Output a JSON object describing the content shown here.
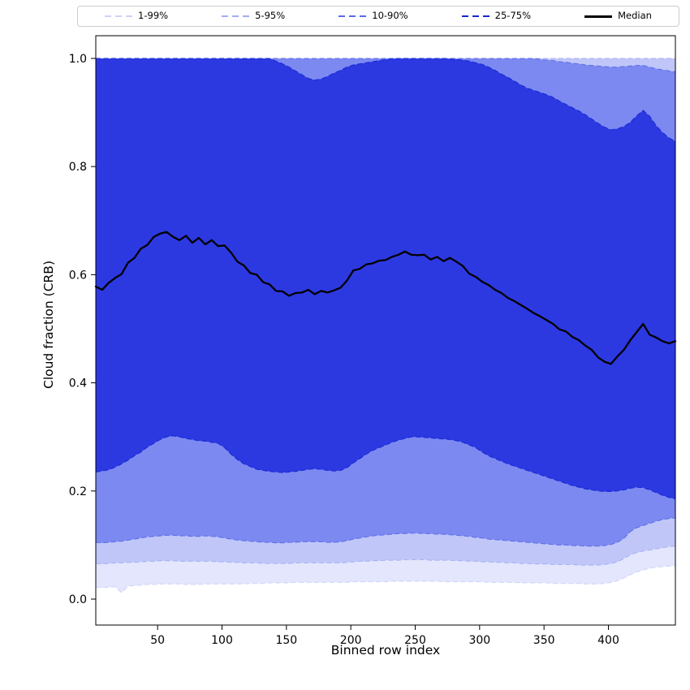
{
  "chart_data": {
    "type": "area",
    "title": "",
    "xlabel": "Binned row index",
    "ylabel": "Cloud fraction (CRB)",
    "xlim": [
      2,
      452
    ],
    "ylim": [
      -0.048,
      1.042
    ],
    "x_ticks": [
      50,
      100,
      150,
      200,
      250,
      300,
      350,
      400
    ],
    "y_ticks": [
      "0.0",
      "0.2",
      "0.4",
      "0.6",
      "0.8",
      "1.0"
    ],
    "grid": false,
    "legend_position": "top",
    "x": [
      2,
      7,
      12,
      17,
      22,
      27,
      32,
      37,
      42,
      47,
      52,
      57,
      62,
      67,
      72,
      77,
      82,
      87,
      92,
      97,
      102,
      107,
      112,
      117,
      122,
      127,
      132,
      137,
      142,
      147,
      152,
      157,
      162,
      167,
      172,
      177,
      182,
      187,
      192,
      197,
      202,
      207,
      212,
      217,
      222,
      227,
      232,
      237,
      242,
      247,
      252,
      257,
      262,
      267,
      272,
      277,
      282,
      287,
      292,
      297,
      302,
      307,
      312,
      317,
      322,
      327,
      332,
      337,
      342,
      347,
      352,
      357,
      362,
      367,
      372,
      377,
      382,
      387,
      392,
      397,
      402,
      407,
      412,
      417,
      422,
      427,
      432,
      437,
      442,
      447,
      452
    ],
    "series": [
      {
        "name": "p1",
        "values": [
          0.022,
          0.021,
          0.022,
          0.023,
          0.012,
          0.024,
          0.025,
          0.026,
          0.027,
          0.027,
          0.028,
          0.028,
          0.028,
          0.028,
          0.027,
          0.027,
          0.027,
          0.028,
          0.028,
          0.028,
          0.028,
          0.028,
          0.028,
          0.028,
          0.029,
          0.029,
          0.029,
          0.03,
          0.03,
          0.03,
          0.03,
          0.031,
          0.031,
          0.031,
          0.031,
          0.031,
          0.031,
          0.031,
          0.031,
          0.031,
          0.032,
          0.032,
          0.032,
          0.032,
          0.032,
          0.032,
          0.033,
          0.033,
          0.033,
          0.033,
          0.033,
          0.033,
          0.033,
          0.033,
          0.032,
          0.032,
          0.032,
          0.032,
          0.032,
          0.032,
          0.032,
          0.031,
          0.031,
          0.031,
          0.031,
          0.031,
          0.03,
          0.03,
          0.03,
          0.03,
          0.03,
          0.029,
          0.029,
          0.029,
          0.029,
          0.029,
          0.028,
          0.028,
          0.028,
          0.029,
          0.031,
          0.034,
          0.039,
          0.045,
          0.05,
          0.054,
          0.057,
          0.059,
          0.06,
          0.061,
          0.062
        ]
      },
      {
        "name": "p5",
        "values": [
          0.066,
          0.065,
          0.066,
          0.067,
          0.067,
          0.068,
          0.068,
          0.069,
          0.07,
          0.07,
          0.071,
          0.071,
          0.071,
          0.07,
          0.07,
          0.07,
          0.07,
          0.07,
          0.07,
          0.069,
          0.069,
          0.068,
          0.068,
          0.067,
          0.067,
          0.067,
          0.066,
          0.066,
          0.066,
          0.066,
          0.066,
          0.067,
          0.067,
          0.067,
          0.067,
          0.067,
          0.067,
          0.067,
          0.067,
          0.068,
          0.069,
          0.07,
          0.07,
          0.071,
          0.071,
          0.072,
          0.072,
          0.072,
          0.073,
          0.073,
          0.073,
          0.073,
          0.072,
          0.072,
          0.072,
          0.072,
          0.071,
          0.071,
          0.07,
          0.07,
          0.069,
          0.069,
          0.068,
          0.068,
          0.067,
          0.067,
          0.066,
          0.066,
          0.065,
          0.065,
          0.065,
          0.064,
          0.064,
          0.064,
          0.064,
          0.063,
          0.063,
          0.063,
          0.063,
          0.064,
          0.066,
          0.069,
          0.075,
          0.082,
          0.086,
          0.089,
          0.091,
          0.093,
          0.095,
          0.097,
          0.098
        ]
      },
      {
        "name": "p10",
        "values": [
          0.105,
          0.104,
          0.105,
          0.106,
          0.107,
          0.109,
          0.111,
          0.113,
          0.115,
          0.116,
          0.117,
          0.118,
          0.118,
          0.117,
          0.117,
          0.116,
          0.116,
          0.117,
          0.116,
          0.115,
          0.113,
          0.111,
          0.109,
          0.108,
          0.107,
          0.106,
          0.105,
          0.105,
          0.104,
          0.104,
          0.105,
          0.105,
          0.106,
          0.106,
          0.106,
          0.106,
          0.105,
          0.105,
          0.106,
          0.108,
          0.111,
          0.113,
          0.115,
          0.117,
          0.118,
          0.119,
          0.12,
          0.121,
          0.121,
          0.122,
          0.122,
          0.121,
          0.121,
          0.12,
          0.12,
          0.119,
          0.118,
          0.117,
          0.116,
          0.114,
          0.113,
          0.111,
          0.11,
          0.109,
          0.108,
          0.107,
          0.106,
          0.105,
          0.104,
          0.103,
          0.102,
          0.101,
          0.1,
          0.1,
          0.099,
          0.099,
          0.098,
          0.098,
          0.098,
          0.099,
          0.101,
          0.105,
          0.112,
          0.125,
          0.132,
          0.136,
          0.14,
          0.144,
          0.147,
          0.149,
          0.15
        ]
      },
      {
        "name": "p25",
        "values": [
          0.235,
          0.237,
          0.239,
          0.244,
          0.25,
          0.257,
          0.265,
          0.272,
          0.281,
          0.288,
          0.295,
          0.3,
          0.302,
          0.3,
          0.297,
          0.295,
          0.293,
          0.292,
          0.29,
          0.288,
          0.28,
          0.268,
          0.258,
          0.25,
          0.245,
          0.24,
          0.238,
          0.236,
          0.235,
          0.234,
          0.235,
          0.236,
          0.238,
          0.24,
          0.241,
          0.24,
          0.238,
          0.237,
          0.238,
          0.243,
          0.252,
          0.26,
          0.268,
          0.275,
          0.28,
          0.285,
          0.29,
          0.294,
          0.297,
          0.3,
          0.3,
          0.299,
          0.298,
          0.297,
          0.296,
          0.295,
          0.293,
          0.29,
          0.285,
          0.28,
          0.272,
          0.265,
          0.26,
          0.255,
          0.25,
          0.246,
          0.242,
          0.238,
          0.234,
          0.23,
          0.226,
          0.222,
          0.218,
          0.214,
          0.21,
          0.207,
          0.204,
          0.202,
          0.2,
          0.199,
          0.199,
          0.2,
          0.202,
          0.205,
          0.207,
          0.206,
          0.202,
          0.197,
          0.192,
          0.188,
          0.185
        ]
      },
      {
        "name": "median",
        "values": [
          0.578,
          0.572,
          0.585,
          0.594,
          0.601,
          0.622,
          0.631,
          0.648,
          0.655,
          0.67,
          0.676,
          0.679,
          0.67,
          0.664,
          0.672,
          0.659,
          0.668,
          0.656,
          0.664,
          0.653,
          0.654,
          0.641,
          0.624,
          0.617,
          0.603,
          0.6,
          0.586,
          0.582,
          0.57,
          0.569,
          0.561,
          0.566,
          0.567,
          0.572,
          0.564,
          0.57,
          0.567,
          0.571,
          0.576,
          0.589,
          0.608,
          0.611,
          0.619,
          0.621,
          0.626,
          0.627,
          0.633,
          0.637,
          0.643,
          0.637,
          0.636,
          0.637,
          0.628,
          0.633,
          0.625,
          0.631,
          0.624,
          0.616,
          0.602,
          0.596,
          0.587,
          0.581,
          0.572,
          0.566,
          0.557,
          0.551,
          0.544,
          0.537,
          0.529,
          0.523,
          0.516,
          0.509,
          0.499,
          0.495,
          0.485,
          0.479,
          0.469,
          0.461,
          0.447,
          0.439,
          0.435,
          0.449,
          0.461,
          0.479,
          0.494,
          0.509,
          0.489,
          0.484,
          0.477,
          0.473,
          0.477
        ]
      },
      {
        "name": "p75",
        "values": [
          1.0,
          1.0,
          1.0,
          1.0,
          1.0,
          1.0,
          1.0,
          1.0,
          1.0,
          1.0,
          1.0,
          1.0,
          1.0,
          1.0,
          1.0,
          1.0,
          1.0,
          1.0,
          1.0,
          1.0,
          1.0,
          1.0,
          1.0,
          1.0,
          1.0,
          1.0,
          1.0,
          1.0,
          0.995,
          0.99,
          0.984,
          0.977,
          0.97,
          0.963,
          0.96,
          0.962,
          0.967,
          0.973,
          0.978,
          0.984,
          0.988,
          0.99,
          0.992,
          0.994,
          0.996,
          0.998,
          0.999,
          1.0,
          1.0,
          1.0,
          1.0,
          1.0,
          1.0,
          1.0,
          1.0,
          0.999,
          0.998,
          0.997,
          0.995,
          0.992,
          0.989,
          0.984,
          0.978,
          0.971,
          0.965,
          0.958,
          0.951,
          0.945,
          0.941,
          0.937,
          0.933,
          0.928,
          0.921,
          0.915,
          0.909,
          0.903,
          0.896,
          0.888,
          0.88,
          0.873,
          0.868,
          0.87,
          0.874,
          0.882,
          0.894,
          0.904,
          0.893,
          0.876,
          0.863,
          0.853,
          0.847
        ]
      },
      {
        "name": "p90",
        "values": [
          1.0,
          1.0,
          1.0,
          1.0,
          1.0,
          1.0,
          1.0,
          1.0,
          1.0,
          1.0,
          1.0,
          1.0,
          1.0,
          1.0,
          1.0,
          1.0,
          1.0,
          1.0,
          1.0,
          1.0,
          1.0,
          1.0,
          1.0,
          1.0,
          1.0,
          1.0,
          1.0,
          1.0,
          1.0,
          1.0,
          1.0,
          1.0,
          1.0,
          1.0,
          1.0,
          1.0,
          1.0,
          1.0,
          1.0,
          1.0,
          1.0,
          1.0,
          1.0,
          1.0,
          1.0,
          1.0,
          1.0,
          1.0,
          1.0,
          1.0,
          1.0,
          1.0,
          1.0,
          1.0,
          1.0,
          1.0,
          1.0,
          1.0,
          1.0,
          1.0,
          1.0,
          1.0,
          1.0,
          1.0,
          1.0,
          1.0,
          1.0,
          1.0,
          1.0,
          0.998,
          0.997,
          0.996,
          0.994,
          0.993,
          0.991,
          0.99,
          0.988,
          0.987,
          0.986,
          0.985,
          0.984,
          0.984,
          0.985,
          0.986,
          0.987,
          0.987,
          0.984,
          0.981,
          0.979,
          0.977,
          0.975
        ]
      },
      {
        "name": "p95",
        "values": 1.0
      },
      {
        "name": "p99",
        "values": 1.0
      }
    ],
    "bands": [
      {
        "label": "1-99%",
        "lower": "p1",
        "upper": "p99",
        "fill": "#e3e6fc",
        "edge": "#ccd3f9"
      },
      {
        "label": "5-95%",
        "lower": "p5",
        "upper": "p95",
        "fill": "#c0c7f8",
        "edge": "#a3aef5"
      },
      {
        "label": "10-90%",
        "lower": "p10",
        "upper": "p90",
        "fill": "#7c89f0",
        "edge": "#5a6aeb"
      },
      {
        "label": "25-75%",
        "lower": "p25",
        "upper": "p75",
        "fill": "#2c39e1",
        "edge": "#1626d6"
      }
    ],
    "median_style": {
      "label": "Median",
      "color": "#000000",
      "width": 2.3
    }
  }
}
